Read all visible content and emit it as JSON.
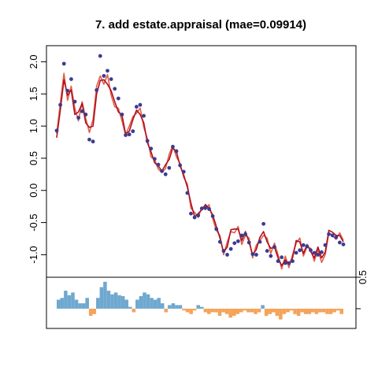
{
  "chart_data": [
    {
      "type": "line",
      "title": "7. add estate.appraisal (mae=0.09914)",
      "ylim": [
        -1.35,
        2.25
      ],
      "yticks": [
        -1.0,
        -0.5,
        0.0,
        0.5,
        1.0,
        1.5,
        2.0
      ],
      "ytick_labels": [
        "-1.0",
        "-0.5",
        "0.0",
        "0.5",
        "1.0",
        "1.5",
        "2.0"
      ],
      "xlim": [
        0,
        101
      ],
      "grid": false,
      "legend": "none",
      "colors": {
        "points": "#3b3b8f",
        "fit_primary": "#b01020",
        "fit_secondary": "#e0604a"
      },
      "observed": [
        0.93,
        1.33,
        1.97,
        1.55,
        1.73,
        1.38,
        1.13,
        1.23,
        1.18,
        0.79,
        0.76,
        1.56,
        2.09,
        1.78,
        1.86,
        1.73,
        1.58,
        1.43,
        1.18,
        0.86,
        0.87,
        0.92,
        1.3,
        1.33,
        1.16,
        0.77,
        0.65,
        0.49,
        0.4,
        0.3,
        0.25,
        0.35,
        0.68,
        0.61,
        0.39,
        0.29,
        -0.04,
        -0.36,
        -0.42,
        -0.39,
        -0.28,
        -0.27,
        -0.29,
        -0.4,
        -0.6,
        -0.8,
        -0.94,
        -1.0,
        -0.91,
        -0.82,
        -0.79,
        -0.7,
        -0.68,
        -0.81,
        -0.99,
        -1.0,
        -0.8,
        -0.52,
        -0.94,
        -1.02,
        -0.88,
        -1.1,
        -1.04,
        -1.13,
        -1.13,
        -1.1,
        -0.97,
        -0.93,
        -0.85,
        -0.87,
        -0.93,
        -0.97,
        -1.0,
        -0.96,
        -0.85,
        -0.68,
        -0.7,
        -0.73,
        -0.81,
        -0.84
      ],
      "series": [
        {
          "values": [
            0.82,
            1.25,
            1.72,
            1.48,
            1.56,
            1.18,
            1.22,
            1.35,
            1.05,
            0.98,
            1.0,
            1.5,
            1.71,
            1.72,
            1.65,
            1.55,
            1.38,
            1.22,
            1.17,
            0.88,
            0.92,
            1.1,
            1.25,
            1.18,
            1.05,
            0.74,
            0.6,
            0.43,
            0.38,
            0.3,
            0.4,
            0.48,
            0.66,
            0.6,
            0.38,
            0.24,
            0.05,
            -0.2,
            -0.41,
            -0.36,
            -0.3,
            -0.22,
            -0.28,
            -0.38,
            -0.56,
            -0.74,
            -0.96,
            -0.88,
            -0.61,
            -0.6,
            -0.6,
            -0.78,
            -0.64,
            -0.8,
            -1.0,
            -0.92,
            -0.73,
            -0.64,
            -0.8,
            -0.9,
            -0.88,
            -1.05,
            -1.17,
            -1.08,
            -1.15,
            -1.05,
            -0.78,
            -0.8,
            -0.98,
            -0.84,
            -0.95,
            -1.05,
            -0.88,
            -1.05,
            -0.96,
            -0.62,
            -0.65,
            -0.7,
            -0.7,
            -0.8
          ]
        },
        {
          "values": [
            0.88,
            1.36,
            1.82,
            1.4,
            1.62,
            1.28,
            1.08,
            1.38,
            1.12,
            0.9,
            1.1,
            1.62,
            1.78,
            1.65,
            1.8,
            1.48,
            1.3,
            1.28,
            1.08,
            0.86,
            1.0,
            1.15,
            1.2,
            1.28,
            0.98,
            0.8,
            0.52,
            0.48,
            0.33,
            0.28,
            0.34,
            0.56,
            0.7,
            0.52,
            0.42,
            0.2,
            0.1,
            -0.28,
            -0.34,
            -0.42,
            -0.26,
            -0.3,
            -0.22,
            -0.44,
            -0.62,
            -0.7,
            -1.0,
            -0.8,
            -0.64,
            -0.66,
            -0.56,
            -0.84,
            -0.7,
            -0.74,
            -1.05,
            -0.85,
            -0.78,
            -0.7,
            -0.74,
            -0.98,
            -0.82,
            -1.0,
            -1.22,
            -1.02,
            -1.2,
            -1.0,
            -0.82,
            -0.74,
            -1.02,
            -0.88,
            -0.9,
            -1.1,
            -0.92,
            -1.12,
            -1.0,
            -0.66,
            -0.7,
            -0.76,
            -0.66,
            -0.78
          ]
        }
      ]
    },
    {
      "type": "bar",
      "title": "",
      "ylim": [
        -0.22,
        0.35
      ],
      "yticks": [
        0.5
      ],
      "ytick_labels": [
        "0.5"
      ],
      "colors": {
        "positive": "#6fa8cf",
        "negative": "#f5a35a"
      },
      "values": [
        0.1,
        0.12,
        0.2,
        0.15,
        0.18,
        0.1,
        0.06,
        0.06,
        0.12,
        -0.08,
        -0.06,
        0.12,
        0.24,
        0.3,
        0.2,
        0.16,
        0.18,
        0.15,
        0.14,
        0.1,
        0.02,
        -0.04,
        0.1,
        0.14,
        0.18,
        0.16,
        0.12,
        0.1,
        0.12,
        0.06,
        -0.04,
        0.04,
        0.06,
        0.04,
        0.04,
        -0.02,
        -0.04,
        -0.06,
        -0.02,
        0.04,
        0.02,
        -0.04,
        -0.06,
        -0.04,
        -0.04,
        -0.08,
        -0.04,
        -0.06,
        -0.1,
        -0.08,
        -0.06,
        -0.04,
        -0.02,
        -0.04,
        -0.04,
        -0.06,
        -0.04,
        0.04,
        -0.08,
        -0.06,
        -0.04,
        -0.08,
        -0.12,
        -0.06,
        -0.04,
        -0.02,
        -0.06,
        -0.08,
        -0.04,
        -0.06,
        -0.06,
        -0.04,
        -0.06,
        -0.04,
        -0.04,
        -0.06,
        -0.06,
        -0.04,
        -0.02,
        -0.06
      ]
    }
  ]
}
